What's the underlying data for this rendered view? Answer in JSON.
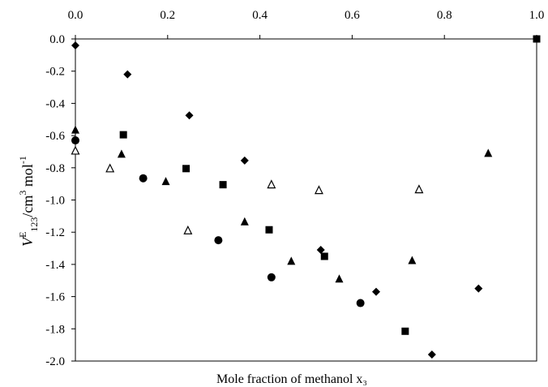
{
  "chart_data": {
    "type": "scatter",
    "title": "",
    "xlabel": "Mole fraction of methanol x₃",
    "ylabel": {
      "v": "V",
      "sup": "E",
      "sub": "123",
      "rest": "/cm",
      "cube": "3",
      "mol": " mol",
      "inv": "-1"
    },
    "xlim": [
      0.0,
      1.0
    ],
    "ylim": [
      -2.0,
      0.0
    ],
    "x_ticks": [
      "0.0",
      "0.2",
      "0.4",
      "0.6",
      "0.8",
      "1.0"
    ],
    "y_ticks": [
      "0.0",
      "-0.2",
      "-0.4",
      "-0.6",
      "-0.8",
      "-1.0",
      "-1.2",
      "-1.4",
      "-1.6",
      "-1.8",
      "-2.0"
    ],
    "grid": false,
    "series": [
      {
        "marker": "diamond",
        "points": [
          [
            0.0,
            -0.04
          ],
          [
            0.113,
            -0.22
          ],
          [
            0.247,
            -0.475
          ],
          [
            0.367,
            -0.755
          ],
          [
            0.532,
            -1.31
          ],
          [
            0.652,
            -1.57
          ],
          [
            0.773,
            -1.96
          ],
          [
            0.874,
            -1.55
          ]
        ]
      },
      {
        "marker": "square",
        "points": [
          [
            0.104,
            -0.595
          ],
          [
            0.24,
            -0.805
          ],
          [
            0.32,
            -0.905
          ],
          [
            0.42,
            -1.185
          ],
          [
            0.54,
            -1.35
          ],
          [
            0.715,
            -1.815
          ],
          [
            1.0,
            0.0
          ]
        ]
      },
      {
        "marker": "triangle-filled",
        "points": [
          [
            0.0,
            -0.565
          ],
          [
            0.1,
            -0.715
          ],
          [
            0.196,
            -0.885
          ],
          [
            0.367,
            -1.135
          ],
          [
            0.468,
            -1.38
          ],
          [
            0.572,
            -1.49
          ],
          [
            0.73,
            -1.375
          ],
          [
            0.895,
            -0.71
          ]
        ]
      },
      {
        "marker": "triangle-open",
        "points": [
          [
            0.0,
            -0.695
          ],
          [
            0.075,
            -0.805
          ],
          [
            0.244,
            -1.19
          ],
          [
            0.425,
            -0.905
          ],
          [
            0.528,
            -0.94
          ],
          [
            0.745,
            -0.935
          ]
        ]
      },
      {
        "marker": "circle",
        "points": [
          [
            0.0,
            -0.63
          ],
          [
            0.147,
            -0.865
          ],
          [
            0.31,
            -1.25
          ],
          [
            0.425,
            -1.48
          ],
          [
            0.618,
            -1.64
          ]
        ]
      }
    ]
  }
}
